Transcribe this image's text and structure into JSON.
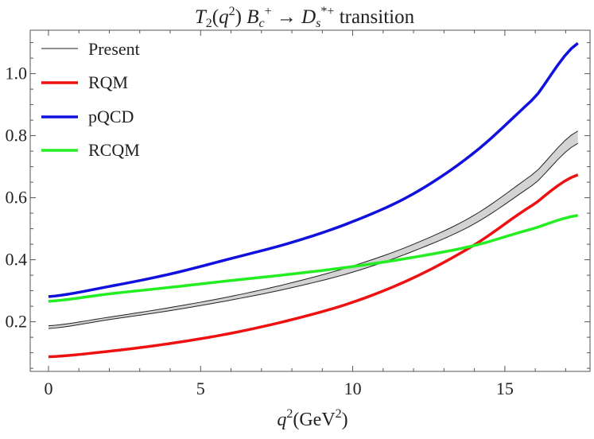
{
  "chart_data": {
    "type": "line",
    "title_parts": {
      "t": "T",
      "t_sub": "2",
      "open": "(",
      "q": "q",
      "q_sup": "2",
      "close": ")",
      "b": "B",
      "b_sub": "c",
      "b_sup": "+",
      "arrow": " → ",
      "d": "D",
      "d_sub": "s",
      "d_sup": "*+",
      "rest": " transition"
    },
    "xlabel_parts": {
      "q": "q",
      "q_sup": "2",
      "open": "(",
      "unit": "GeV",
      "unit_sup": "2",
      "close": ")"
    },
    "xlim": [
      -0.6,
      17.8
    ],
    "ylim": [
      0.04,
      1.14
    ],
    "x_ticks": [
      0,
      5,
      10,
      15
    ],
    "y_ticks": [
      0.2,
      0.4,
      0.6,
      0.8,
      1.0
    ],
    "x_tick_labels": [
      "0",
      "5",
      "10",
      "15"
    ],
    "y_tick_labels": [
      "0.2",
      "0.4",
      "0.6",
      "0.8",
      "1.0"
    ],
    "legend_position": "top-left",
    "grid": false,
    "band": {
      "name": "Present",
      "color": "#d3d3d3",
      "edge_color": "#222222",
      "x": [
        0,
        2,
        4,
        6,
        8,
        10,
        12,
        14,
        16,
        17.4
      ],
      "lower": [
        0.178,
        0.207,
        0.236,
        0.27,
        0.31,
        0.36,
        0.428,
        0.516,
        0.646,
        0.775
      ],
      "upper": [
        0.187,
        0.215,
        0.246,
        0.282,
        0.326,
        0.38,
        0.45,
        0.544,
        0.681,
        0.815
      ]
    },
    "series": [
      {
        "name": "RQM",
        "color": "#ee1111",
        "x": [
          0,
          2,
          4,
          6,
          8,
          10,
          12,
          14,
          16,
          17.4
        ],
        "y": [
          0.087,
          0.105,
          0.13,
          0.163,
          0.207,
          0.263,
          0.342,
          0.448,
          0.581,
          0.674
        ]
      },
      {
        "name": "pQCD",
        "color": "#1111dd",
        "x": [
          0,
          2,
          4,
          6,
          8,
          10,
          12,
          14,
          16,
          17.4
        ],
        "y": [
          0.281,
          0.314,
          0.354,
          0.404,
          0.456,
          0.523,
          0.613,
          0.746,
          0.924,
          1.098
        ]
      },
      {
        "name": "RCQM",
        "color": "#22ee22",
        "x": [
          0,
          2,
          4,
          6,
          8,
          10,
          12,
          14,
          16,
          17.4
        ],
        "y": [
          0.266,
          0.29,
          0.311,
          0.333,
          0.354,
          0.378,
          0.408,
          0.446,
          0.502,
          0.543
        ]
      }
    ]
  }
}
